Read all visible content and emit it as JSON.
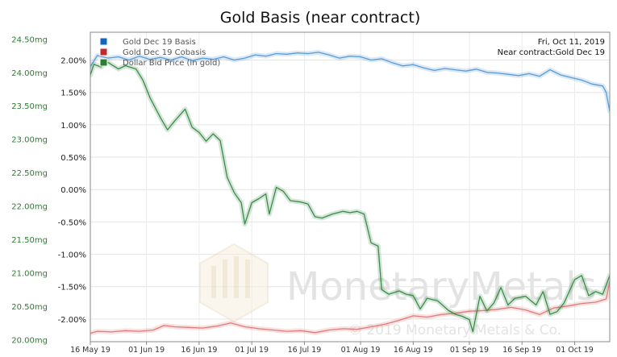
{
  "chart_data": {
    "type": "line",
    "title": "Gold Basis (near contract)",
    "x_tick_labels": [
      "16 May 19",
      "01 Jun 19",
      "16 Jun 19",
      "01 Jul 19",
      "16 Jul 19",
      "01 Aug 19",
      "16 Aug 19",
      "01 Sep 19",
      "16 Sep 19",
      "01 Oct 19"
    ],
    "x_tick_dates": [
      "2019-05-16",
      "2019-06-01",
      "2019-06-16",
      "2019-07-01",
      "2019-07-16",
      "2019-08-01",
      "2019-08-16",
      "2019-09-01",
      "2019-09-16",
      "2019-10-01"
    ],
    "x_range": [
      "2019-05-16",
      "2019-10-11"
    ],
    "y_left": {
      "unit": "mg",
      "range": [
        19.97,
        24.6
      ],
      "tick_labels": [
        "24.50mg",
        "24.00mg",
        "23.50mg",
        "23.00mg",
        "22.50mg",
        "22.00mg",
        "21.50mg",
        "21.00mg",
        "20.50mg",
        "20.00mg"
      ],
      "tick_values": [
        24.5,
        24.0,
        23.5,
        23.0,
        22.5,
        22.0,
        21.5,
        21.0,
        20.5,
        20.0
      ]
    },
    "y_right": {
      "unit": "%",
      "range": [
        -2.35,
        2.43
      ],
      "tick_labels": [
        "2.00%",
        "1.50%",
        "1.00%",
        "0.50%",
        "0.00%",
        "-0.50%",
        "-1.00%",
        "-1.50%",
        "-2.00%"
      ],
      "tick_values": [
        2.0,
        1.5,
        1.0,
        0.5,
        0.0,
        -0.5,
        -1.0,
        -1.5,
        -2.0
      ]
    },
    "grid": true,
    "legend": {
      "placement": "top-left",
      "items": [
        {
          "label": "Gold Dec 19 Basis",
          "color": "#1565c0"
        },
        {
          "label": "Gold Dec 19 Cobasis",
          "color": "#c62828"
        },
        {
          "label": "Dollar Bid Price (in gold)",
          "color": "#2e7d32"
        }
      ]
    },
    "info": {
      "date": "Fri, Oct 11, 2019",
      "contract": "Near contract:Gold Dec 19"
    },
    "series": [
      {
        "name": "Gold Dec 19 Basis",
        "axis": "right",
        "color": "#5b9bd5",
        "points": [
          [
            "2019-05-16",
            1.9
          ],
          [
            "2019-05-18",
            2.07
          ],
          [
            "2019-05-21",
            2.03
          ],
          [
            "2019-05-24",
            2.05
          ],
          [
            "2019-05-27",
            2.0
          ],
          [
            "2019-05-30",
            2.06
          ],
          [
            "2019-06-02",
            2.01
          ],
          [
            "2019-06-05",
            2.04
          ],
          [
            "2019-06-08",
            2.0
          ],
          [
            "2019-06-11",
            2.05
          ],
          [
            "2019-06-14",
            1.99
          ],
          [
            "2019-06-17",
            2.03
          ],
          [
            "2019-06-20",
            2.01
          ],
          [
            "2019-06-23",
            2.05
          ],
          [
            "2019-06-26",
            2.0
          ],
          [
            "2019-06-29",
            2.03
          ],
          [
            "2019-07-02",
            2.08
          ],
          [
            "2019-07-05",
            2.06
          ],
          [
            "2019-07-08",
            2.1
          ],
          [
            "2019-07-11",
            2.09
          ],
          [
            "2019-07-14",
            2.11
          ],
          [
            "2019-07-17",
            2.1
          ],
          [
            "2019-07-20",
            2.12
          ],
          [
            "2019-07-23",
            2.08
          ],
          [
            "2019-07-26",
            2.03
          ],
          [
            "2019-07-29",
            2.06
          ],
          [
            "2019-08-01",
            2.05
          ],
          [
            "2019-08-04",
            2.0
          ],
          [
            "2019-08-07",
            2.02
          ],
          [
            "2019-08-10",
            1.96
          ],
          [
            "2019-08-13",
            1.91
          ],
          [
            "2019-08-16",
            1.93
          ],
          [
            "2019-08-19",
            1.88
          ],
          [
            "2019-08-22",
            1.84
          ],
          [
            "2019-08-25",
            1.87
          ],
          [
            "2019-08-28",
            1.85
          ],
          [
            "2019-08-31",
            1.83
          ],
          [
            "2019-09-03",
            1.86
          ],
          [
            "2019-09-06",
            1.81
          ],
          [
            "2019-09-09",
            1.8
          ],
          [
            "2019-09-12",
            1.78
          ],
          [
            "2019-09-15",
            1.76
          ],
          [
            "2019-09-18",
            1.79
          ],
          [
            "2019-09-21",
            1.75
          ],
          [
            "2019-09-24",
            1.85
          ],
          [
            "2019-09-27",
            1.77
          ],
          [
            "2019-09-30",
            1.73
          ],
          [
            "2019-10-03",
            1.69
          ],
          [
            "2019-10-06",
            1.63
          ],
          [
            "2019-10-09",
            1.6
          ],
          [
            "2019-10-10",
            1.5
          ],
          [
            "2019-10-11",
            1.21
          ]
        ]
      },
      {
        "name": "Gold Dec 19 Cobasis",
        "axis": "right",
        "color": "#e07b7b",
        "points": [
          [
            "2019-05-16",
            -2.22
          ],
          [
            "2019-05-18",
            -2.19
          ],
          [
            "2019-05-22",
            -2.2
          ],
          [
            "2019-05-26",
            -2.18
          ],
          [
            "2019-05-30",
            -2.19
          ],
          [
            "2019-06-03",
            -2.17
          ],
          [
            "2019-06-06",
            -2.1
          ],
          [
            "2019-06-09",
            -2.12
          ],
          [
            "2019-06-13",
            -2.13
          ],
          [
            "2019-06-17",
            -2.14
          ],
          [
            "2019-06-21",
            -2.11
          ],
          [
            "2019-06-25",
            -2.06
          ],
          [
            "2019-06-29",
            -2.12
          ],
          [
            "2019-07-03",
            -2.15
          ],
          [
            "2019-07-07",
            -2.17
          ],
          [
            "2019-07-11",
            -2.19
          ],
          [
            "2019-07-15",
            -2.18
          ],
          [
            "2019-07-19",
            -2.21
          ],
          [
            "2019-07-23",
            -2.17
          ],
          [
            "2019-07-27",
            -2.15
          ],
          [
            "2019-07-31",
            -2.16
          ],
          [
            "2019-08-04",
            -2.12
          ],
          [
            "2019-08-08",
            -2.08
          ],
          [
            "2019-08-12",
            -2.02
          ],
          [
            "2019-08-16",
            -1.95
          ],
          [
            "2019-08-20",
            -1.97
          ],
          [
            "2019-08-24",
            -1.93
          ],
          [
            "2019-08-28",
            -1.91
          ],
          [
            "2019-09-01",
            -1.88
          ],
          [
            "2019-09-05",
            -1.87
          ],
          [
            "2019-09-09",
            -1.85
          ],
          [
            "2019-09-13",
            -1.82
          ],
          [
            "2019-09-17",
            -1.86
          ],
          [
            "2019-09-21",
            -1.93
          ],
          [
            "2019-09-25",
            -1.83
          ],
          [
            "2019-09-29",
            -1.8
          ],
          [
            "2019-10-03",
            -1.76
          ],
          [
            "2019-10-07",
            -1.74
          ],
          [
            "2019-10-10",
            -1.69
          ],
          [
            "2019-10-11",
            -1.42
          ]
        ]
      },
      {
        "name": "Dollar Bid Price (in gold)",
        "axis": "left",
        "color": "#3d8b4a",
        "points": [
          [
            "2019-05-16",
            23.96
          ],
          [
            "2019-05-17",
            24.12
          ],
          [
            "2019-05-19",
            24.08
          ],
          [
            "2019-05-21",
            24.15
          ],
          [
            "2019-05-24",
            24.05
          ],
          [
            "2019-05-26",
            24.1
          ],
          [
            "2019-05-29",
            24.05
          ],
          [
            "2019-05-31",
            23.88
          ],
          [
            "2019-06-02",
            23.62
          ],
          [
            "2019-06-05",
            23.32
          ],
          [
            "2019-06-07",
            23.14
          ],
          [
            "2019-06-09",
            23.27
          ],
          [
            "2019-06-12",
            23.45
          ],
          [
            "2019-06-14",
            23.18
          ],
          [
            "2019-06-16",
            23.1
          ],
          [
            "2019-06-18",
            22.97
          ],
          [
            "2019-06-20",
            23.08
          ],
          [
            "2019-06-22",
            22.98
          ],
          [
            "2019-06-24",
            22.43
          ],
          [
            "2019-06-26",
            22.2
          ],
          [
            "2019-06-28",
            22.05
          ],
          [
            "2019-06-29",
            21.73
          ],
          [
            "2019-07-01",
            22.05
          ],
          [
            "2019-07-03",
            22.11
          ],
          [
            "2019-07-05",
            22.18
          ],
          [
            "2019-07-06",
            21.88
          ],
          [
            "2019-07-08",
            22.28
          ],
          [
            "2019-07-10",
            22.22
          ],
          [
            "2019-07-12",
            22.08
          ],
          [
            "2019-07-15",
            22.06
          ],
          [
            "2019-07-17",
            22.03
          ],
          [
            "2019-07-19",
            21.84
          ],
          [
            "2019-07-21",
            21.82
          ],
          [
            "2019-07-24",
            21.88
          ],
          [
            "2019-07-27",
            21.92
          ],
          [
            "2019-07-29",
            21.9
          ],
          [
            "2019-07-31",
            21.92
          ],
          [
            "2019-08-02",
            21.88
          ],
          [
            "2019-08-04",
            21.45
          ],
          [
            "2019-08-06",
            21.4
          ],
          [
            "2019-08-07",
            20.75
          ],
          [
            "2019-08-09",
            20.68
          ],
          [
            "2019-08-12",
            20.73
          ],
          [
            "2019-08-14",
            20.68
          ],
          [
            "2019-08-16",
            20.66
          ],
          [
            "2019-08-18",
            20.46
          ],
          [
            "2019-08-20",
            20.62
          ],
          [
            "2019-08-23",
            20.58
          ],
          [
            "2019-08-26",
            20.44
          ],
          [
            "2019-08-28",
            20.38
          ],
          [
            "2019-08-30",
            20.35
          ],
          [
            "2019-09-01",
            20.3
          ],
          [
            "2019-09-02",
            20.12
          ],
          [
            "2019-09-04",
            20.65
          ],
          [
            "2019-09-06",
            20.43
          ],
          [
            "2019-09-08",
            20.55
          ],
          [
            "2019-09-10",
            20.78
          ],
          [
            "2019-09-12",
            20.52
          ],
          [
            "2019-09-14",
            20.62
          ],
          [
            "2019-09-17",
            20.65
          ],
          [
            "2019-09-20",
            20.52
          ],
          [
            "2019-09-22",
            20.72
          ],
          [
            "2019-09-24",
            20.38
          ],
          [
            "2019-09-26",
            20.42
          ],
          [
            "2019-09-28",
            20.55
          ],
          [
            "2019-10-01",
            20.9
          ],
          [
            "2019-10-03",
            20.96
          ],
          [
            "2019-10-05",
            20.66
          ],
          [
            "2019-10-07",
            20.72
          ],
          [
            "2019-10-09",
            20.68
          ],
          [
            "2019-10-11",
            20.96
          ]
        ]
      }
    ],
    "watermark": {
      "brand": "MonetaryMetals",
      "copyright": "© 2019 Monetary Metals & Co."
    }
  }
}
